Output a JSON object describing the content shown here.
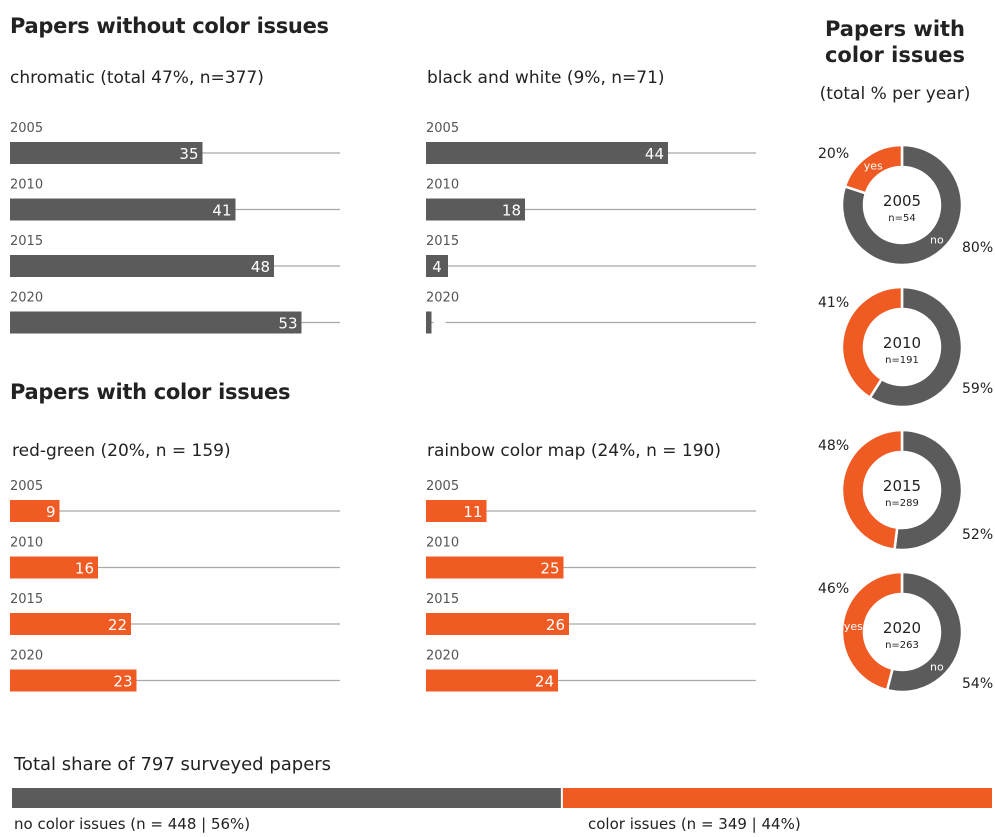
{
  "colors": {
    "gray": "#5b5b5b",
    "orange": "#f05a23",
    "line": "#a9a9a9"
  },
  "headings": {
    "no_issues": "Papers without color issues",
    "with_issues": "Papers with color issues",
    "right_title_line1": "Papers with",
    "right_title_line2": "color issues",
    "right_subtitle": "(total % per year)"
  },
  "chart_data": [
    {
      "type": "bar",
      "title": "chromatic (total 47%, n=377)",
      "categories": [
        "2005",
        "2010",
        "2015",
        "2020"
      ],
      "values": [
        35,
        41,
        48,
        53
      ],
      "xlim": [
        0,
        60
      ],
      "color": "#5b5b5b"
    },
    {
      "type": "bar",
      "title": "black and white (9%, n=71)",
      "categories": [
        "2005",
        "2010",
        "2015",
        "2020"
      ],
      "values": [
        44,
        18,
        4,
        1
      ],
      "xlim": [
        0,
        60
      ],
      "color": "#5b5b5b"
    },
    {
      "type": "bar",
      "title": "red-green (20%, n = 159)",
      "categories": [
        "2005",
        "2010",
        "2015",
        "2020"
      ],
      "values": [
        9,
        16,
        22,
        23
      ],
      "xlim": [
        0,
        60
      ],
      "color": "#f05a23"
    },
    {
      "type": "bar",
      "title": "rainbow color map (24%, n = 190)",
      "categories": [
        "2005",
        "2010",
        "2015",
        "2020"
      ],
      "values": [
        11,
        25,
        26,
        24
      ],
      "xlim": [
        0,
        60
      ],
      "color": "#f05a23"
    },
    {
      "type": "pie",
      "year": "2005",
      "n": "n=54",
      "yes": 20,
      "no": 80,
      "yes_label": "20%",
      "no_label": "80%",
      "slice_yes": "yes",
      "slice_no": "no"
    },
    {
      "type": "pie",
      "year": "2010",
      "n": "n=191",
      "yes": 41,
      "no": 59,
      "yes_label": "41%",
      "no_label": "59%",
      "slice_yes": "",
      "slice_no": ""
    },
    {
      "type": "pie",
      "year": "2015",
      "n": "n=289",
      "yes": 48,
      "no": 52,
      "yes_label": "48%",
      "no_label": "52%",
      "slice_yes": "",
      "slice_no": ""
    },
    {
      "type": "pie",
      "year": "2020",
      "n": "n=263",
      "yes": 46,
      "no": 54,
      "yes_label": "46%",
      "no_label": "54%",
      "slice_yes": "yes",
      "slice_no": "no"
    },
    {
      "type": "bar",
      "title": "Total share of 797 surveyed papers",
      "stacked": true,
      "series": [
        {
          "name": "no color issues (n = 448 | 56%)",
          "value": 448,
          "color": "#5b5b5b"
        },
        {
          "name": "color issues (n = 349 | 44%)",
          "value": 349,
          "color": "#f05a23"
        }
      ]
    }
  ]
}
